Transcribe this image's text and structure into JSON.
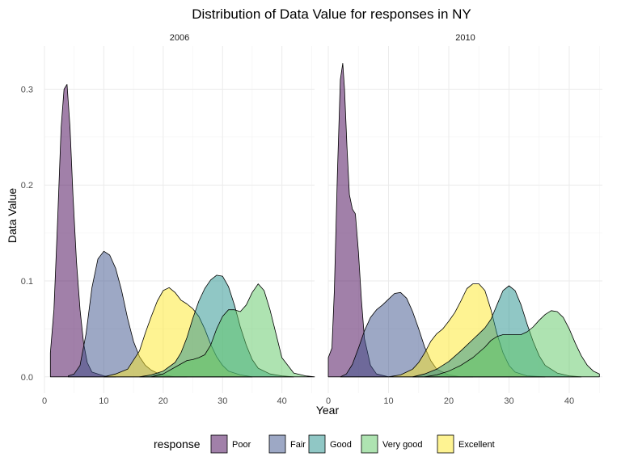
{
  "chart_data": {
    "type": "area",
    "title": "Distribution of Data Value for responses in NY",
    "xlabel": "Year",
    "ylabel": "Data Value",
    "xlim": [
      0,
      45.5
    ],
    "ylim": [
      -0.017,
      0.345
    ],
    "xticks": [
      "0",
      "10",
      "20",
      "30",
      "40"
    ],
    "yticks": [
      "0.0",
      "0.1",
      "0.2",
      "0.3"
    ],
    "grid": true,
    "legend": {
      "title": "response",
      "position": "bottom"
    },
    "colors": {
      "Poor": "#440154",
      "Fair": "#3b528b",
      "Good": "#21908c",
      "Very good": "#5dc863",
      "Excellent": "#fde725"
    },
    "facets": [
      {
        "label": "2006",
        "series": [
          {
            "name": "Poor",
            "x": [
              1.0,
              1.6,
              2.2,
              2.8,
              3.3,
              3.8,
              4.3,
              4.8,
              5.4,
              6.0,
              6.6,
              7.2,
              8.0,
              9.0,
              10.0,
              11.0,
              12.0
            ],
            "values": [
              0.025,
              0.07,
              0.16,
              0.26,
              0.3,
              0.305,
              0.26,
              0.19,
              0.12,
              0.07,
              0.035,
              0.015,
              0.005,
              0.003,
              0.001,
              0.0,
              0.0
            ]
          },
          {
            "name": "Fair",
            "x": [
              4.0,
              5.0,
              6.0,
              7.0,
              8.0,
              9.0,
              10.0,
              11.0,
              12.0,
              13.0,
              14.0,
              15.0,
              16.0,
              17.0,
              18.0,
              19.0,
              20.0,
              21.0,
              22.0,
              24.0
            ],
            "values": [
              0.001,
              0.003,
              0.012,
              0.045,
              0.093,
              0.123,
              0.131,
              0.127,
              0.113,
              0.09,
              0.061,
              0.037,
              0.021,
              0.012,
              0.007,
              0.004,
              0.002,
              0.001,
              0.0,
              0.0
            ]
          },
          {
            "name": "Excellent",
            "x": [
              10.0,
              12.0,
              14.0,
              16.0,
              17.0,
              18.0,
              19.0,
              20.0,
              21.0,
              22.0,
              23.0,
              24.0,
              25.0,
              26.0,
              27.0,
              28.0,
              29.0,
              30.0,
              31.0,
              33.0,
              35.0
            ],
            "values": [
              0.0,
              0.003,
              0.008,
              0.027,
              0.046,
              0.063,
              0.079,
              0.09,
              0.093,
              0.088,
              0.08,
              0.076,
              0.071,
              0.063,
              0.05,
              0.034,
              0.021,
              0.012,
              0.006,
              0.002,
              0.0
            ]
          },
          {
            "name": "Good",
            "x": [
              16.0,
              18.0,
              20.0,
              22.0,
              23.0,
              24.0,
              25.0,
              26.0,
              27.0,
              28.0,
              29.0,
              30.0,
              31.0,
              32.0,
              33.0,
              34.0,
              35.0,
              36.0,
              38.0,
              40.0,
              42.0
            ],
            "values": [
              0.0,
              0.002,
              0.006,
              0.015,
              0.025,
              0.041,
              0.061,
              0.079,
              0.092,
              0.101,
              0.106,
              0.105,
              0.094,
              0.075,
              0.052,
              0.033,
              0.018,
              0.009,
              0.003,
              0.001,
              0.0
            ]
          },
          {
            "name": "Very good",
            "x": [
              18.0,
              20.0,
              22.0,
              24.0,
              25.0,
              26.0,
              27.0,
              28.0,
              29.0,
              30.0,
              31.0,
              32.0,
              33.0,
              34.0,
              35.0,
              36.0,
              37.0,
              38.0,
              39.0,
              40.0,
              42.0,
              44.0,
              45.5
            ],
            "values": [
              0.0,
              0.003,
              0.01,
              0.017,
              0.018,
              0.02,
              0.023,
              0.033,
              0.05,
              0.063,
              0.07,
              0.07,
              0.068,
              0.075,
              0.088,
              0.097,
              0.09,
              0.07,
              0.045,
              0.02,
              0.004,
              0.001,
              0.0
            ]
          }
        ]
      },
      {
        "label": "2010",
        "series": [
          {
            "name": "Poor",
            "x": [
              0.0,
              0.6,
              1.0,
              1.5,
              2.0,
              2.4,
              2.7,
              3.1,
              3.5,
              4.0,
              4.5,
              5.0,
              5.5,
              6.0,
              7.0,
              8.0,
              10.0
            ],
            "values": [
              0.02,
              0.03,
              0.09,
              0.21,
              0.31,
              0.327,
              0.3,
              0.24,
              0.19,
              0.175,
              0.17,
              0.13,
              0.08,
              0.04,
              0.012,
              0.003,
              0.0
            ]
          },
          {
            "name": "Fair",
            "x": [
              2.0,
              3.0,
              4.0,
              5.0,
              6.0,
              7.0,
              8.0,
              9.0,
              10.0,
              11.0,
              12.0,
              13.0,
              14.0,
              15.0,
              16.0,
              17.0,
              18.0,
              20.0,
              22.0,
              24.0
            ],
            "values": [
              0.0,
              0.003,
              0.013,
              0.03,
              0.048,
              0.062,
              0.07,
              0.075,
              0.081,
              0.087,
              0.088,
              0.082,
              0.068,
              0.05,
              0.031,
              0.017,
              0.008,
              0.002,
              0.0,
              0.0
            ]
          },
          {
            "name": "Excellent",
            "x": [
              10.0,
              12.0,
              14.0,
              15.0,
              16.0,
              17.0,
              18.0,
              19.0,
              20.0,
              21.0,
              22.0,
              23.0,
              24.0,
              25.0,
              26.0,
              27.0,
              28.0,
              29.0,
              30.0,
              31.0,
              33.0,
              36.0
            ],
            "values": [
              0.0,
              0.002,
              0.008,
              0.015,
              0.025,
              0.037,
              0.045,
              0.05,
              0.058,
              0.067,
              0.079,
              0.092,
              0.097,
              0.097,
              0.09,
              0.07,
              0.045,
              0.025,
              0.012,
              0.005,
              0.001,
              0.0
            ]
          },
          {
            "name": "Good",
            "x": [
              14.0,
              16.0,
              18.0,
              20.0,
              22.0,
              23.0,
              24.0,
              25.0,
              26.0,
              27.0,
              28.0,
              29.0,
              30.0,
              31.0,
              32.0,
              33.0,
              34.0,
              35.0,
              36.0,
              38.0,
              40.0,
              42.0
            ],
            "values": [
              0.0,
              0.003,
              0.008,
              0.016,
              0.027,
              0.033,
              0.039,
              0.045,
              0.051,
              0.06,
              0.075,
              0.09,
              0.095,
              0.09,
              0.075,
              0.055,
              0.037,
              0.022,
              0.012,
              0.004,
              0.001,
              0.0
            ]
          },
          {
            "name": "Very good",
            "x": [
              16.0,
              18.0,
              20.0,
              22.0,
              24.0,
              26.0,
              27.0,
              28.0,
              29.0,
              30.0,
              31.0,
              32.0,
              33.0,
              34.0,
              35.0,
              36.0,
              37.0,
              38.0,
              39.0,
              40.0,
              41.0,
              42.0,
              43.0,
              44.0,
              45.0
            ],
            "values": [
              0.0,
              0.002,
              0.006,
              0.012,
              0.02,
              0.031,
              0.038,
              0.042,
              0.044,
              0.044,
              0.044,
              0.044,
              0.047,
              0.052,
              0.059,
              0.065,
              0.069,
              0.068,
              0.062,
              0.05,
              0.035,
              0.022,
              0.012,
              0.006,
              0.003
            ]
          }
        ]
      }
    ]
  }
}
